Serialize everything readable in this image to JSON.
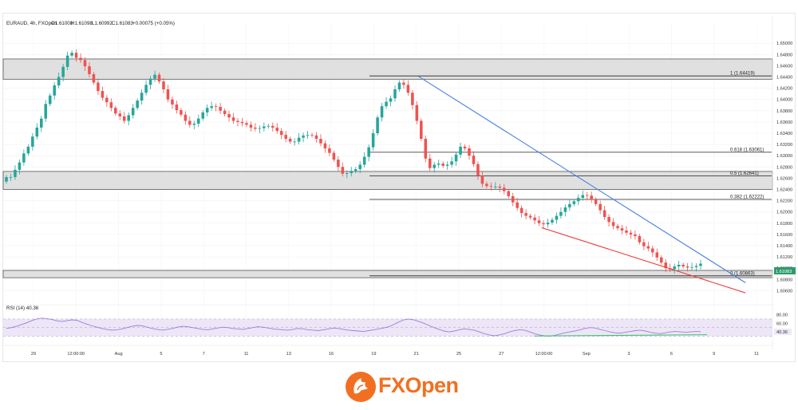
{
  "header": {
    "symbol": "EURAUD, 4h, FXOpen",
    "open": "O1.61008",
    "high": "H1.61098",
    "low": "L1.60992",
    "close": "C1.61083",
    "change": "+0.00075 (+0.05%)"
  },
  "price_badge": "1.61083",
  "brand": {
    "name": "FXOpen",
    "accent": "#f26f21"
  },
  "colors": {
    "up": "#26a69a",
    "down": "#ef5350",
    "zone": "#e0e0e0",
    "blue_line": "#4a7fe0",
    "red_line": "#f04040",
    "rsi_line": "#9c7fd6",
    "rsi_band": "#ece6f7",
    "green_line": "#43c46b"
  },
  "chart_data": [
    {
      "type": "candlestick",
      "title": "",
      "x_ticks": [
        "29",
        "12:00:00",
        "Aug",
        "5",
        "7",
        "11",
        "13",
        "16",
        "19",
        "21",
        "25",
        "27",
        "12:00:00",
        "Sep",
        "3",
        "6",
        "9",
        "11"
      ],
      "y_ticks": [
        "1.65000",
        "1.64800",
        "1.64600",
        "1.64400",
        "1.64200",
        "1.64000",
        "1.63800",
        "1.63600",
        "1.63400",
        "1.63200",
        "1.63000",
        "1.62800",
        "1.62600",
        "1.62400",
        "1.62200",
        "1.62000",
        "1.61800",
        "1.61600",
        "1.61400",
        "1.61200",
        "1.61000",
        "1.60800",
        "1.60600"
      ],
      "ylim": [
        1.6052,
        1.6523
      ],
      "close_path": [
        1.6262,
        1.6262,
        1.6275,
        1.6288,
        1.6304,
        1.6316,
        1.6334,
        1.635,
        1.6366,
        1.6392,
        1.6407,
        1.6425,
        1.644,
        1.6458,
        1.6478,
        1.6483,
        1.6474,
        1.647,
        1.6459,
        1.6445,
        1.643,
        1.6415,
        1.6403,
        1.6395,
        1.6385,
        1.6375,
        1.637,
        1.6362,
        1.6372,
        1.6385,
        1.6398,
        1.6412,
        1.6426,
        1.6437,
        1.6444,
        1.6432,
        1.6418,
        1.64,
        1.6391,
        1.6381,
        1.6373,
        1.6362,
        1.6355,
        1.6357,
        1.6366,
        1.6377,
        1.6385,
        1.6388,
        1.6387,
        1.638,
        1.6374,
        1.6368,
        1.6362,
        1.636,
        1.6358,
        1.6355,
        1.635,
        1.6348,
        1.6349,
        1.6352,
        1.6353,
        1.635,
        1.6344,
        1.6337,
        1.633,
        1.6325,
        1.6325,
        1.6332,
        1.6336,
        1.6337,
        1.6336,
        1.633,
        1.6322,
        1.6313,
        1.6305,
        1.6293,
        1.628,
        1.6268,
        1.6269,
        1.6273,
        1.6276,
        1.6284,
        1.6298,
        1.6315,
        1.634,
        1.6368,
        1.6388,
        1.6396,
        1.6402,
        1.6418,
        1.643,
        1.6426,
        1.6412,
        1.639,
        1.6362,
        1.633,
        1.6295,
        1.6278,
        1.6284,
        1.6286,
        1.6282,
        1.6284,
        1.629,
        1.6302,
        1.6316,
        1.6313,
        1.63,
        1.6285,
        1.6265,
        1.625,
        1.6246,
        1.6245,
        1.6245,
        1.6243,
        1.6237,
        1.6228,
        1.6217,
        1.6207,
        1.6198,
        1.6193,
        1.619,
        1.6185,
        1.618,
        1.6178,
        1.6181,
        1.6186,
        1.6193,
        1.62,
        1.6208,
        1.6214,
        1.6219,
        1.6225,
        1.623,
        1.6229,
        1.6222,
        1.6214,
        1.6203,
        1.6191,
        1.6182,
        1.6175,
        1.6171,
        1.6167,
        1.6163,
        1.616,
        1.6157,
        1.6146,
        1.6139,
        1.6135,
        1.6128,
        1.6119,
        1.611,
        1.61,
        1.6098,
        1.6103,
        1.6106,
        1.6103,
        1.6101,
        1.6102,
        1.6104,
        1.6108
      ],
      "horizontal_zones": [
        [
          1.6436,
          1.6472
        ],
        [
          1.624,
          1.6272
        ],
        [
          1.6083,
          1.6096
        ]
      ],
      "fibonacci": [
        {
          "label": "1 (1.64419)",
          "value": 1.64419
        },
        {
          "label": "0.618 (1.63061)",
          "value": 1.63061
        },
        {
          "label": "0.5 (1.62641)",
          "value": 1.62641
        },
        {
          "label": "0.382 (1.62222)",
          "value": 1.62222
        },
        {
          "label": "0 (1.60863)",
          "value": 1.60863
        }
      ],
      "trendlines": [
        {
          "name": "resistance",
          "from": [
            0.54,
            1.6441
          ],
          "to": [
            0.965,
            1.6074
          ],
          "color": "#4a7fe0"
        },
        {
          "name": "support",
          "from": [
            0.7,
            1.6172
          ],
          "to": [
            0.965,
            1.6056
          ],
          "color": "#f04040"
        }
      ]
    },
    {
      "type": "line",
      "title": "RSI (14)",
      "last_value": "40.36",
      "y_ticks": [
        "80.00",
        "60.00",
        "40.36"
      ],
      "ylim": [
        18,
        92
      ],
      "band": [
        30,
        70
      ],
      "values": [
        48,
        50,
        53,
        57,
        61,
        66,
        70,
        72,
        71,
        69,
        66,
        64,
        66,
        68,
        67,
        62,
        58,
        54,
        51,
        48,
        46,
        44,
        45,
        47,
        50,
        53,
        55,
        54,
        51,
        48,
        46,
        44,
        46,
        48,
        51,
        53,
        52,
        50,
        48,
        46,
        45,
        47,
        49,
        51,
        50,
        48,
        47,
        46,
        48,
        50,
        52,
        51,
        49,
        47,
        46,
        45,
        44,
        46,
        48,
        47,
        45,
        44,
        43,
        45,
        47,
        49,
        48,
        46,
        44,
        43,
        42,
        41,
        43,
        45,
        47,
        49,
        52,
        57,
        63,
        68,
        70,
        68,
        64,
        60,
        55,
        50,
        46,
        42,
        40,
        42,
        45,
        47,
        46,
        44,
        40,
        36,
        33,
        31,
        33,
        36,
        40,
        43,
        45,
        44,
        40,
        36,
        33,
        31,
        30,
        32,
        35,
        38,
        40,
        42,
        45,
        48,
        50,
        49,
        46,
        43,
        40,
        38,
        37,
        39,
        41,
        43,
        44,
        42,
        39,
        37,
        36,
        38,
        40,
        41,
        40,
        39,
        40,
        41,
        40.36
      ],
      "divergence_line": [
        [
          0.69,
          30.5
        ],
        [
          0.915,
          33.5
        ]
      ]
    }
  ]
}
